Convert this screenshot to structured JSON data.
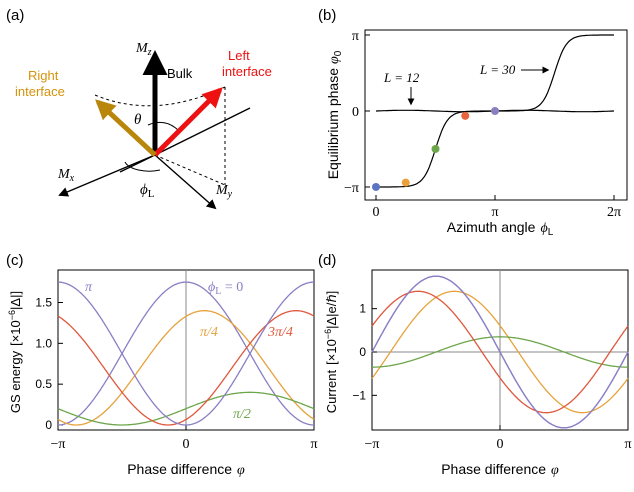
{
  "panels": {
    "a": {
      "tag": "(a)",
      "labels": {
        "mz": "M",
        "mz_sub": "z",
        "mx": "M",
        "mx_sub": "x",
        "my": "M",
        "my_sub": "y",
        "bulk": "Bulk",
        "left1": "Left",
        "left2": "interface",
        "right1": "Right",
        "right2": "interface",
        "theta": "θ",
        "phi": "ϕ",
        "phi_sub": "L"
      },
      "colors": {
        "bulk": "#000000",
        "left": "#ee1111",
        "right": "#b8860b"
      }
    },
    "b": {
      "tag": "(b)",
      "ylabel": "Equilibrium phase",
      "ylabel_sym": "φ",
      "ylabel_sub": "0",
      "xlabel": "Azimuth angle",
      "xlabel_sym": "ϕ",
      "xlabel_sub": "L",
      "yticks": [
        "π",
        "0",
        "−π"
      ],
      "xticks": [
        "0",
        "π",
        "2π"
      ],
      "ann_L12": "L = 12",
      "ann_L30": "L = 30"
    },
    "c": {
      "tag": "(c)",
      "ylabel_main": "GS energy",
      "ylabel_unit": "[×10",
      "ylabel_exp": "−6",
      "ylabel_tail": "|Δ|]",
      "xlabel": "Phase difference",
      "xlabel_sym": "φ",
      "yticks": [
        "1.5",
        "1.0",
        "0.5",
        "0"
      ],
      "xticks": [
        "−π",
        "0",
        "π"
      ],
      "curve_labels": {
        "pi": "π",
        "zero_sym": "ϕ",
        "zero_sub": "L",
        "zero_tail": " = 0",
        "pi4": "π/4",
        "pi2": "π/2",
        "pi34": "3π/4"
      }
    },
    "d": {
      "tag": "(d)",
      "ylabel_main": "Current",
      "ylabel_unit": "[×10",
      "ylabel_exp": "−6",
      "ylabel_tail": "|Δ|e/ℏ]",
      "xlabel": "Phase difference",
      "xlabel_sym": "φ",
      "yticks": [
        "1",
        "0",
        "−1"
      ],
      "xticks": [
        "−π",
        "0",
        "π"
      ]
    }
  },
  "chart_data": [
    {
      "panel": "b",
      "type": "line",
      "xlabel": "Azimuth angle ϕL",
      "ylabel": "Equilibrium phase φ0",
      "xlim": [
        0,
        6.2832
      ],
      "ylim": [
        -3.1416,
        3.1416
      ],
      "series": [
        {
          "name": "L = 12",
          "color": "#000000",
          "x": [
            0,
            0.785,
            1.571,
            2.356,
            3.142,
            3.927,
            4.712,
            5.498,
            6.283
          ],
          "y": [
            0,
            0.03,
            0,
            -0.03,
            0,
            0.03,
            0,
            -0.03,
            0
          ]
        },
        {
          "name": "L = 30",
          "color": "#000000",
          "x": [
            0,
            0.785,
            1.178,
            1.571,
            1.963,
            2.356,
            3.142,
            3.927,
            4.32,
            4.712,
            5.105,
            5.498,
            6.283
          ],
          "y": [
            -3.14,
            -3.05,
            -2.5,
            -1.57,
            -0.65,
            -0.2,
            0,
            0.2,
            0.65,
            1.57,
            2.5,
            2.95,
            3.14
          ]
        }
      ],
      "points": [
        {
          "x": 0,
          "y": -3.14,
          "color": "#5b76c0"
        },
        {
          "x": 0.785,
          "y": -2.96,
          "color": "#e9a23b"
        },
        {
          "x": 1.571,
          "y": -1.57,
          "color": "#6ca64a"
        },
        {
          "x": 2.356,
          "y": -0.2,
          "color": "#e8643c"
        },
        {
          "x": 3.142,
          "y": 0,
          "color": "#8c7fbf"
        }
      ]
    },
    {
      "panel": "c",
      "type": "line",
      "xlabel": "Phase difference φ",
      "ylabel": "GS energy [×10−6|Δ|]",
      "xlim": [
        -3.1416,
        3.1416
      ],
      "ylim": [
        0,
        1.8
      ],
      "series": [
        {
          "name": "ϕL = 0",
          "color": "#8a7fc4",
          "x0": 0,
          "amp": 1.75,
          "base": 0.0
        },
        {
          "name": "π/4",
          "color": "#e6a23c",
          "x0": 0.45,
          "amp": 1.4,
          "base": 0.0
        },
        {
          "name": "π/2",
          "color": "#6ca64a",
          "x0": 1.57,
          "amp": 0.4,
          "base": 0.0
        },
        {
          "name": "3π/4",
          "color": "#e0573c",
          "x0": 2.7,
          "amp": 1.4,
          "base": 0.0
        },
        {
          "name": "π",
          "color": "#8a7fc4",
          "x0": 3.1416,
          "amp": 1.75,
          "base": 0.0
        }
      ]
    },
    {
      "panel": "d",
      "type": "line",
      "xlabel": "Phase difference φ",
      "ylabel": "Current [×10−6|Δ|e/ℏ]",
      "xlim": [
        -3.1416,
        3.1416
      ],
      "ylim": [
        -1.8,
        1.8
      ],
      "series": [
        {
          "name": "ϕL = 0",
          "color": "#8a7fc4",
          "x0": 0,
          "amp": 1.75
        },
        {
          "name": "π/4",
          "color": "#e6a23c",
          "x0": 0.45,
          "amp": 1.4
        },
        {
          "name": "π/2",
          "color": "#6ca64a",
          "x0": 1.57,
          "amp": 0.35
        },
        {
          "name": "3π/4",
          "color": "#e0573c",
          "x0": 2.7,
          "amp": 1.4
        },
        {
          "name": "π",
          "color": "#8a7fc4",
          "x0": 3.1416,
          "amp": 1.75
        }
      ]
    }
  ]
}
